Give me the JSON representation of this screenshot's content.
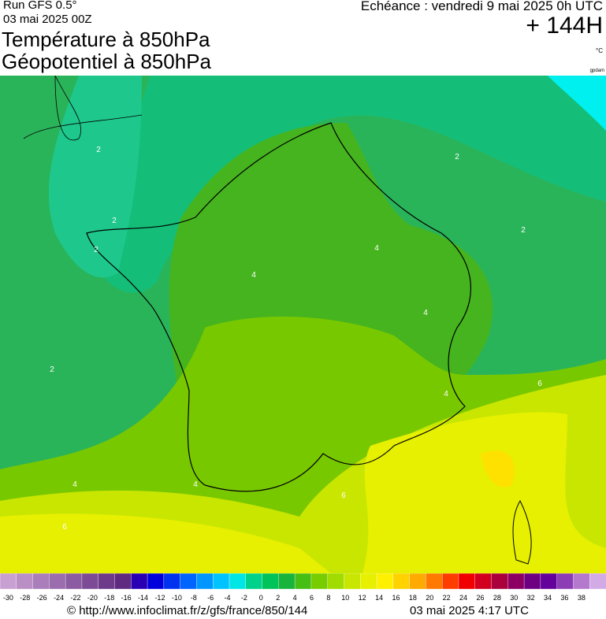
{
  "header": {
    "run": "Run GFS 0.5°",
    "run_date": "03 mai 2025 00Z",
    "title_temperature": "Température à 850hPa",
    "title_geopotential": "Géopotentiel à 850hPa",
    "echeance": "Echéance : vendredi 9 mai 2025 0h UTC",
    "lead_time": "+ 144H",
    "unit": "°C",
    "geopotential_unit": "gpdam"
  },
  "map": {
    "contour_labels": [
      "2",
      "2",
      "2",
      "4",
      "4",
      "4",
      "6",
      "4",
      "2",
      "4",
      "4",
      "6",
      "6",
      "2",
      "2"
    ]
  },
  "colorbar": {
    "ticks": [
      -30,
      -28,
      -26,
      -24,
      -22,
      -20,
      -18,
      -16,
      -14,
      -12,
      -10,
      -8,
      -6,
      -4,
      -2,
      0,
      2,
      4,
      6,
      8,
      10,
      12,
      14,
      16,
      18,
      20,
      22,
      24,
      26,
      28,
      30,
      32,
      34,
      36,
      38
    ],
    "colors": [
      "#c8a0d2",
      "#b98fc6",
      "#aa7eba",
      "#9b6dae",
      "#8c5ca2",
      "#7d4b96",
      "#6e3a8a",
      "#5f2a80",
      "#2a00b4",
      "#0000dc",
      "#0032f0",
      "#0064ff",
      "#0096ff",
      "#00c3ff",
      "#00e6e6",
      "#00d28c",
      "#00c35a",
      "#19b43c",
      "#46be14",
      "#78cd00",
      "#a0dc00",
      "#c8e600",
      "#e6f000",
      "#fff000",
      "#ffd200",
      "#ffaa00",
      "#ff7800",
      "#ff3c00",
      "#f00000",
      "#d2001e",
      "#aa003c",
      "#8c0064",
      "#6e0082",
      "#64009b",
      "#8c3cb4",
      "#b478cd",
      "#d2aae6"
    ]
  },
  "footer": {
    "url": "© http://www.infoclimat.fr/z/gfs/france/850/144",
    "timestamp": "03 mai 2025  4:17 UTC"
  }
}
